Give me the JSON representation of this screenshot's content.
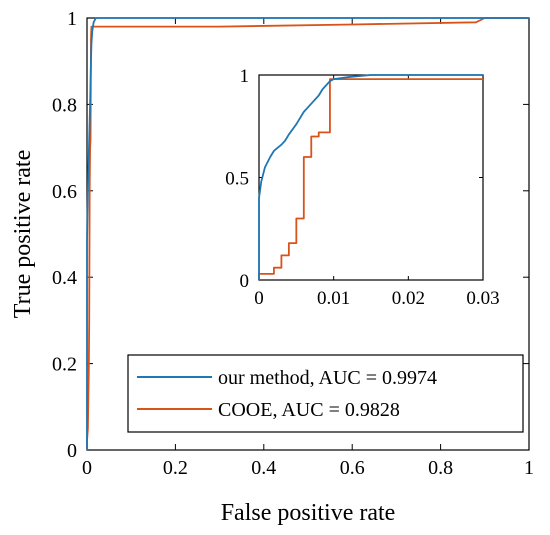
{
  "colors": {
    "series_ours": "#1f77b4",
    "series_ooe": "#d95319",
    "axis": "#000000",
    "background": "#ffffff"
  },
  "chart_data": [
    {
      "type": "line",
      "title": "",
      "xlabel": "False positive rate",
      "ylabel": "True positive rate",
      "xlim": [
        0,
        1
      ],
      "ylim": [
        0,
        1
      ],
      "xticks": [
        0,
        0.2,
        0.4,
        0.6,
        0.8,
        1
      ],
      "yticks": [
        0,
        0.2,
        0.4,
        0.6,
        0.8,
        1
      ],
      "xtick_labels": [
        "0",
        "0.2",
        "0.4",
        "0.6",
        "0.8",
        "1"
      ],
      "ytick_labels": [
        "0",
        "0.2",
        "0.4",
        "0.6",
        "0.8",
        "1"
      ],
      "grid": false,
      "legend_position": "bottom-right",
      "series": [
        {
          "name": "our method, AUC = 0.9974",
          "color": "#1f77b4",
          "x": [
            0,
            0,
            0.001,
            0.002,
            0.003,
            0.004,
            0.005,
            0.006,
            0.007,
            0.008,
            0.009,
            0.01,
            0.012,
            0.015,
            0.02,
            0.03,
            1
          ],
          "y": [
            0,
            0.48,
            0.55,
            0.6,
            0.65,
            0.68,
            0.72,
            0.76,
            0.8,
            0.85,
            0.9,
            0.94,
            0.97,
            0.99,
            1,
            1,
            1
          ]
        },
        {
          "name": "COOE, AUC = 0.9828",
          "color": "#d95319",
          "x": [
            0,
            0,
            0.002,
            0.003,
            0.004,
            0.005,
            0.006,
            0.007,
            0.008,
            0.009,
            0.01,
            0.02,
            0.03,
            0.1,
            0.3,
            0.6,
            0.88,
            0.9,
            1
          ],
          "y": [
            0,
            0.02,
            0.05,
            0.12,
            0.18,
            0.3,
            0.6,
            0.7,
            0.72,
            0.95,
            0.98,
            0.98,
            0.98,
            0.98,
            0.98,
            0.985,
            0.99,
            1,
            1
          ]
        }
      ]
    },
    {
      "type": "line",
      "title": "",
      "xlabel": "",
      "ylabel": "",
      "xlim": [
        0,
        0.03
      ],
      "ylim": [
        0,
        1
      ],
      "xticks": [
        0,
        0.01,
        0.02,
        0.03
      ],
      "yticks": [
        0,
        0.5,
        1
      ],
      "xtick_labels": [
        "0",
        "0.01",
        "0.02",
        "0.03"
      ],
      "ytick_labels": [
        "0",
        "0.5",
        "1"
      ],
      "grid": false,
      "series": [
        {
          "color": "#1f77b4",
          "x": [
            0,
            0,
            0.0003,
            0.0008,
            0.0015,
            0.002,
            0.003,
            0.0035,
            0.004,
            0.005,
            0.006,
            0.007,
            0.008,
            0.0085,
            0.009,
            0.0095,
            0.01,
            0.012,
            0.015,
            0.02,
            0.03
          ],
          "y": [
            0,
            0.4,
            0.48,
            0.55,
            0.6,
            0.63,
            0.66,
            0.68,
            0.71,
            0.76,
            0.82,
            0.86,
            0.9,
            0.93,
            0.95,
            0.97,
            0.98,
            0.99,
            1,
            1,
            1
          ]
        },
        {
          "color": "#d95319",
          "x": [
            0,
            0,
            0.002,
            0.002,
            0.003,
            0.003,
            0.004,
            0.004,
            0.005,
            0.005,
            0.006,
            0.006,
            0.007,
            0.007,
            0.008,
            0.008,
            0.0095,
            0.0095,
            0.03
          ],
          "y": [
            0,
            0.03,
            0.03,
            0.06,
            0.06,
            0.12,
            0.12,
            0.18,
            0.18,
            0.3,
            0.3,
            0.6,
            0.6,
            0.7,
            0.7,
            0.72,
            0.72,
            0.98,
            0.98
          ]
        }
      ]
    }
  ]
}
